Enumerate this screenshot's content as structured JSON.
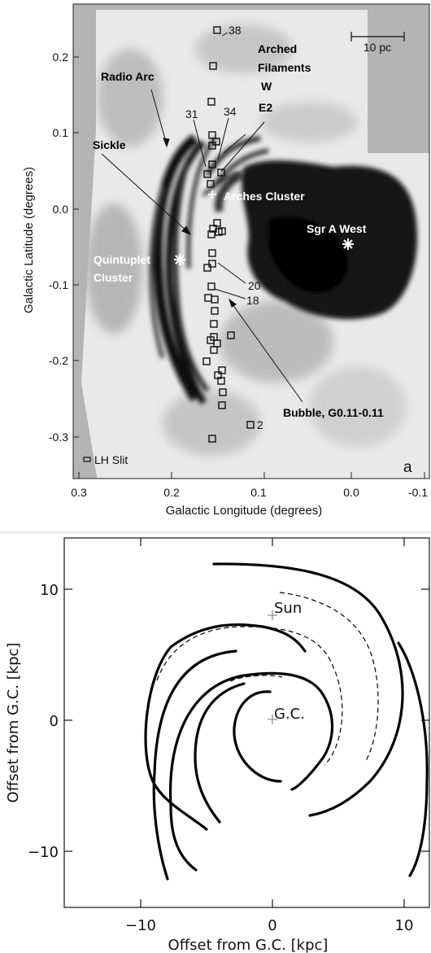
{
  "top": {
    "panel_letter": "a",
    "xlabel": "Galactic Longitude (degrees)",
    "ylabel": "Galactic Latitude (degrees)",
    "xticks": [
      "0.3",
      "0.2",
      "0.1",
      "0.0",
      "-0.1"
    ],
    "yticks": [
      "0.2",
      "0.1",
      "0.0",
      "-0.1",
      "-0.2",
      "-0.3"
    ],
    "scalebar": "10 pc",
    "slit_legend": "LH Slit",
    "labels": {
      "radio_arc": "Radio Arc",
      "arched_filaments": "Arched",
      "arched_filaments2": "Filaments",
      "w": "W",
      "e2": "E2",
      "sickle": "Sickle",
      "arches": "Arches Cluster",
      "sgra": "Sgr A West",
      "quint1": "Quintuplet",
      "quint2": "Cluster",
      "bubble": "Bubble, G0.11-0.11",
      "n38": "38",
      "n31": "31",
      "n34": "34",
      "n20": "20",
      "n18": "18",
      "n2": "2"
    }
  },
  "bottom": {
    "xlabel": "Offset from G.C. [kpc]",
    "ylabel": "Offset from G.C. [kpc]",
    "xticks": [
      "−10",
      "0",
      "10"
    ],
    "yticks": [
      "10",
      "0",
      "−10"
    ],
    "sun": "Sun",
    "gc": "G.C."
  }
}
